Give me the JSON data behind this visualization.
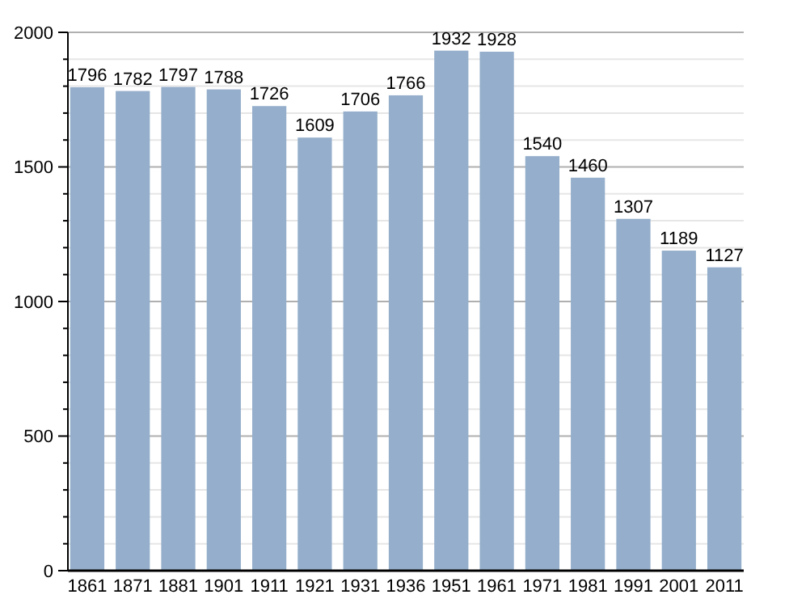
{
  "chart_data": {
    "type": "bar",
    "categories": [
      "1861",
      "1871",
      "1881",
      "1901",
      "1911",
      "1921",
      "1931",
      "1936",
      "1951",
      "1961",
      "1971",
      "1981",
      "1991",
      "2001",
      "2011"
    ],
    "values": [
      1796,
      1782,
      1797,
      1788,
      1726,
      1609,
      1706,
      1766,
      1932,
      1928,
      1540,
      1460,
      1307,
      1189,
      1127
    ],
    "color": "#94aecb",
    "ylim": [
      0,
      2000
    ],
    "yticks": [
      0,
      {
        "value": 100,
        "label": null
      },
      {
        "value": 200,
        "label": null
      },
      {
        "value": 300,
        "label": null
      },
      {
        "value": 400,
        "label": null
      },
      500,
      {
        "value": 600,
        "label": null
      },
      {
        "value": 700,
        "label": null
      },
      {
        "value": 800,
        "label": null
      },
      {
        "value": 900,
        "label": null
      },
      1000,
      {
        "value": 1100,
        "label": null
      },
      {
        "value": 1200,
        "label": null
      },
      {
        "value": 1300,
        "label": null
      },
      {
        "value": 1400,
        "label": null
      },
      1500,
      {
        "value": 1600,
        "label": null
      },
      {
        "value": 1700,
        "label": null
      },
      {
        "value": 1800,
        "label": null
      },
      {
        "value": 1900,
        "label": null
      },
      2000
    ],
    "grid": "y",
    "data_labels": true
  }
}
